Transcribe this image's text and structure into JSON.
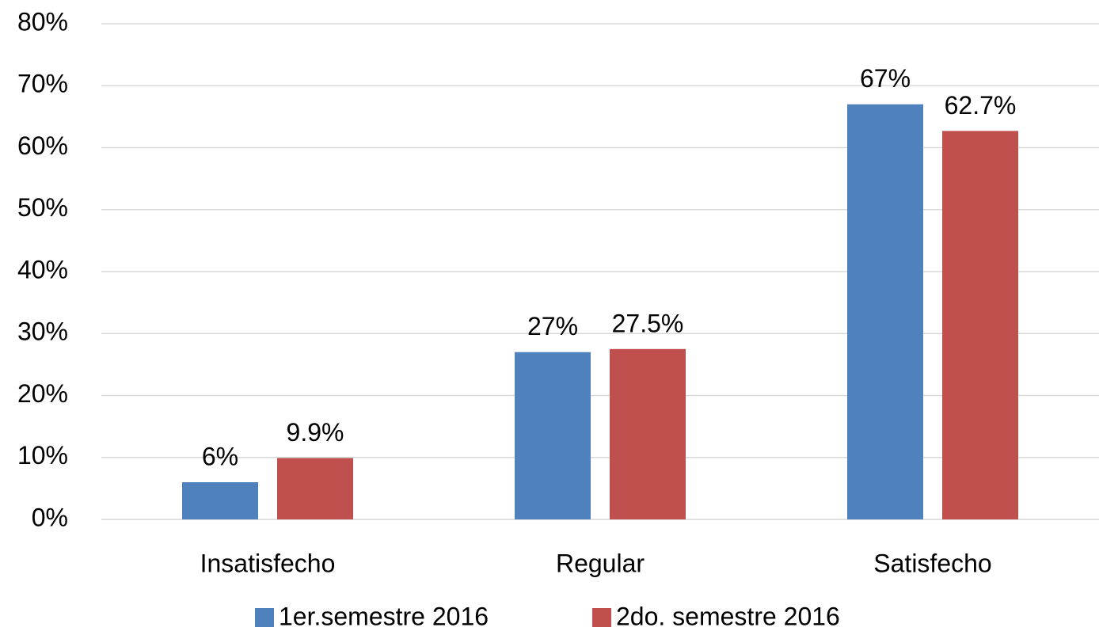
{
  "chart_data": {
    "type": "bar",
    "categories": [
      "Insatisfecho",
      "Regular",
      "Satisfecho"
    ],
    "series": [
      {
        "name": "1er.semestre 2016",
        "color": "#4f81bd",
        "values": [
          6,
          27,
          67
        ],
        "value_labels": [
          "6%",
          "27%",
          "67%"
        ]
      },
      {
        "name": "2do. semestre 2016",
        "color": "#c0504d",
        "values": [
          9.9,
          27.5,
          62.7
        ],
        "value_labels": [
          "9.9%",
          "27.5%",
          "62.7%"
        ]
      }
    ],
    "ylim": [
      0,
      80
    ],
    "yticks": [
      {
        "value": 0,
        "label": "0%"
      },
      {
        "value": 10,
        "label": "10%"
      },
      {
        "value": 20,
        "label": "20%"
      },
      {
        "value": 30,
        "label": "30%"
      },
      {
        "value": 40,
        "label": "40%"
      },
      {
        "value": 50,
        "label": "50%"
      },
      {
        "value": 60,
        "label": "60%"
      },
      {
        "value": 70,
        "label": "70%"
      },
      {
        "value": 80,
        "label": "80%"
      }
    ],
    "grid": true,
    "legend": "bottom"
  }
}
